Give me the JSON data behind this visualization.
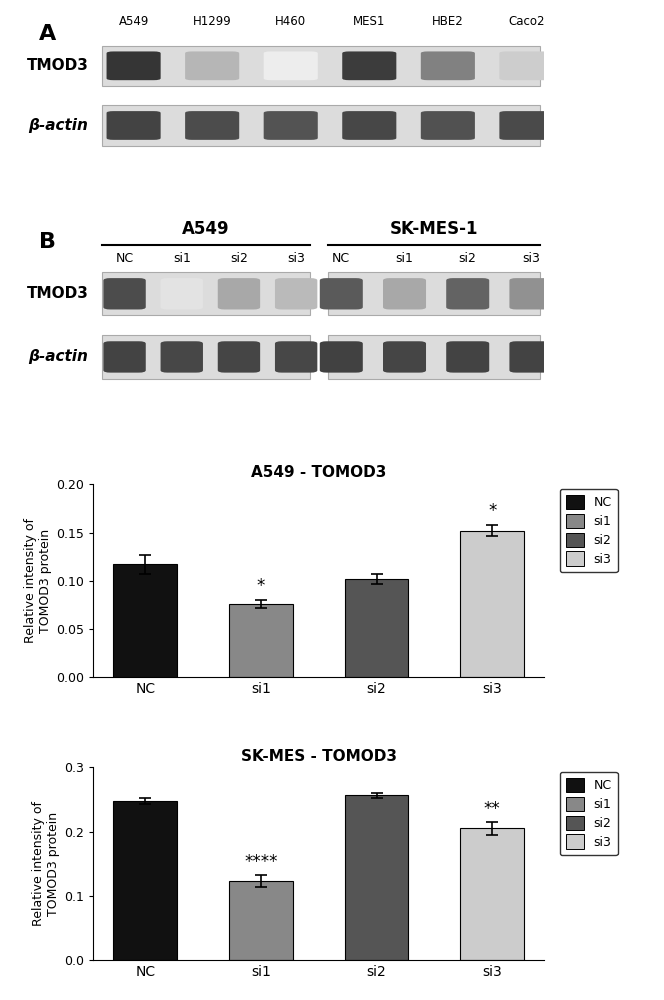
{
  "wb_A": {
    "cell_lines": [
      "A549",
      "H1299",
      "H460",
      "MES1",
      "HBE2",
      "Caco2"
    ],
    "tmod3_intensities": [
      0.88,
      0.32,
      0.08,
      0.85,
      0.55,
      0.22
    ],
    "actin_intensities": [
      0.82,
      0.78,
      0.75,
      0.8,
      0.76,
      0.79
    ]
  },
  "wb_B": {
    "conditions": [
      "NC",
      "si1",
      "si2",
      "si3"
    ],
    "tmod3_A549": [
      0.78,
      0.12,
      0.38,
      0.3
    ],
    "tmod3_SKMES": [
      0.72,
      0.38,
      0.68,
      0.48
    ],
    "actin_A549": [
      0.82,
      0.8,
      0.81,
      0.8
    ],
    "actin_SKMES": [
      0.83,
      0.81,
      0.82,
      0.82
    ]
  },
  "chart1": {
    "title": "A549 - TOMOD3",
    "categories": [
      "NC",
      "si1",
      "si2",
      "si3"
    ],
    "values": [
      0.117,
      0.076,
      0.102,
      0.152
    ],
    "errors": [
      0.01,
      0.004,
      0.005,
      0.006
    ],
    "colors": [
      "#111111",
      "#888888",
      "#555555",
      "#cccccc"
    ],
    "ylabel": "Relative intensity of\nTOMOD3 protein",
    "ylim": [
      0,
      0.2
    ],
    "yticks": [
      0.0,
      0.05,
      0.1,
      0.15,
      0.2
    ],
    "ytick_labels": [
      "0.00",
      "0.05",
      "0.10",
      "0.15",
      "0.20"
    ],
    "significance": [
      "",
      "*",
      "",
      "*"
    ],
    "legend_labels": [
      "NC",
      "si1",
      "si2",
      "si3"
    ],
    "legend_colors": [
      "#111111",
      "#888888",
      "#555555",
      "#cccccc"
    ]
  },
  "chart2": {
    "title": "SK-MES - TOMOD3",
    "categories": [
      "NC",
      "si1",
      "si2",
      "si3"
    ],
    "values": [
      0.248,
      0.123,
      0.257,
      0.205
    ],
    "errors": [
      0.005,
      0.01,
      0.004,
      0.01
    ],
    "colors": [
      "#111111",
      "#888888",
      "#555555",
      "#cccccc"
    ],
    "ylabel": "Relative intensity of\nTOMOD3 protein",
    "ylim": [
      0,
      0.3
    ],
    "yticks": [
      0.0,
      0.1,
      0.2,
      0.3
    ],
    "ytick_labels": [
      "0.0",
      "0.1",
      "0.2",
      "0.3"
    ],
    "significance": [
      "",
      "****",
      "",
      "**"
    ],
    "legend_labels": [
      "NC",
      "si1",
      "si2",
      "si3"
    ],
    "legend_colors": [
      "#111111",
      "#888888",
      "#555555",
      "#cccccc"
    ]
  },
  "bg_color": "#e0e0e0",
  "band_color_dark": "#1a1a1a",
  "band_color_light": "#d8d8d8"
}
